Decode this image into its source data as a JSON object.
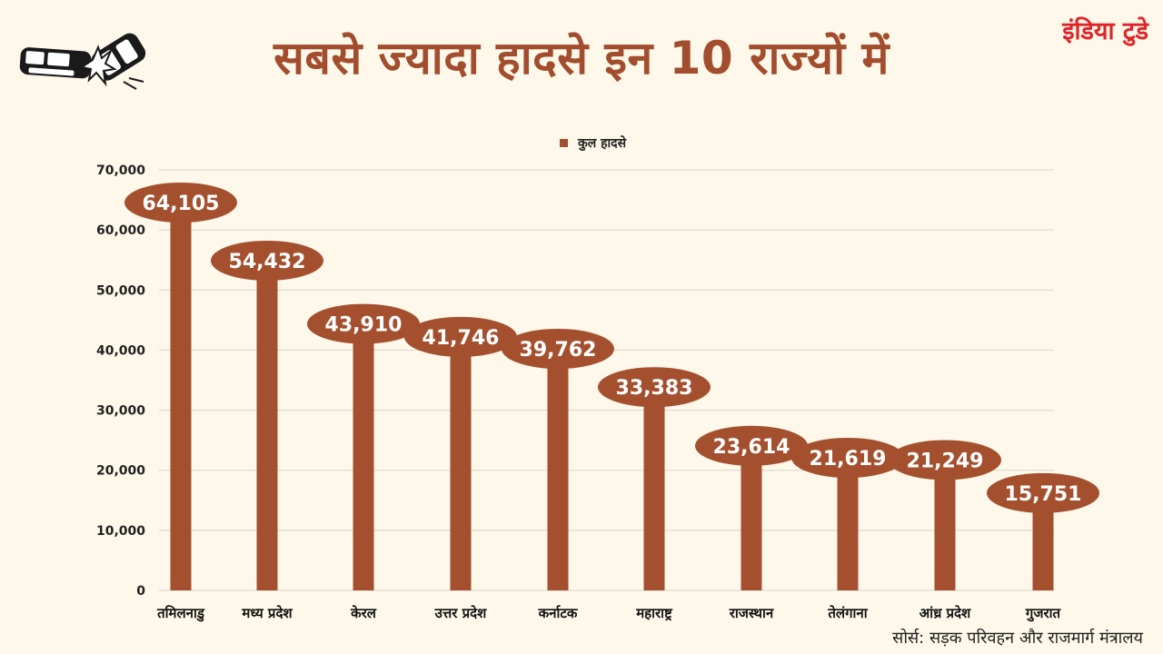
{
  "header": {
    "title": "सबसे ज्यादा हादसे इन 10 राज्यों में",
    "brand": "इंडिया टुडे"
  },
  "footer": {
    "source": "सोर्स: सड़क परिवहन और राजमार्ग मंत्रालय"
  },
  "colors": {
    "bar": "#a4502f",
    "title": "#a24d2e",
    "brand": "#e0242a",
    "background": "#fdf8e9",
    "grid": "#d9d5cc"
  },
  "icons": {
    "logo": "car-crash-icon"
  },
  "chart_data": {
    "type": "bar",
    "categories": [
      "तमिलनाडु",
      "मध्य प्रदेश",
      "केरल",
      "उत्तर प्रदेश",
      "कर्नाटक",
      "महाराष्ट्र",
      "राजस्थान",
      "तेलंगाना",
      "आंध्र प्रदेश",
      "गुजरात"
    ],
    "series": [
      {
        "name": "कुल हादसे",
        "values": [
          64105,
          54432,
          43910,
          41746,
          39762,
          33383,
          23614,
          21619,
          21249,
          15751
        ]
      }
    ],
    "data_labels": [
      "64,105",
      "54,432",
      "43,910",
      "41,746",
      "39,762",
      "33,383",
      "23,614",
      "21,619",
      "21,249",
      "15,751"
    ],
    "yticks": [
      0,
      10000,
      20000,
      30000,
      40000,
      50000,
      60000,
      70000
    ],
    "ytick_labels": [
      "0",
      "10,000",
      "20,000",
      "30,000",
      "40,000",
      "50,000",
      "60,000",
      "70,000"
    ],
    "ylim": [
      0,
      70000
    ],
    "grid": true,
    "legend": "top-center"
  }
}
